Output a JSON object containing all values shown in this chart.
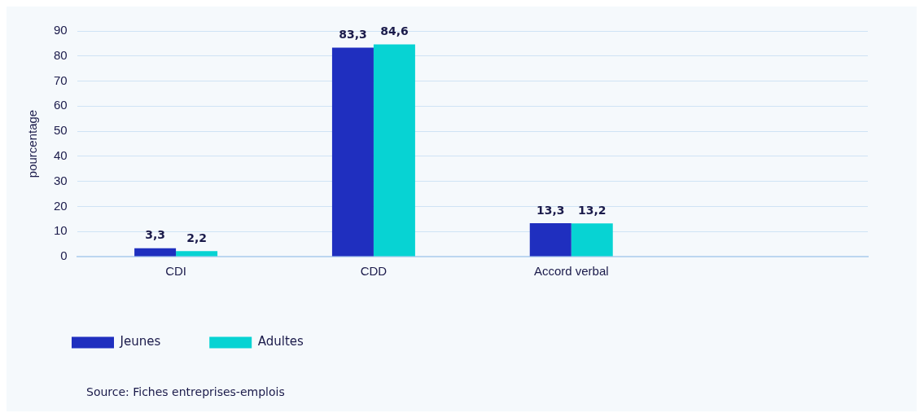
{
  "chart_data": {
    "type": "bar",
    "ylabel": "pourcentage",
    "categories": [
      "CDI",
      "CDD",
      "Accord verbal",
      null
    ],
    "series": [
      {
        "name": "Jeunes",
        "color": "#1f2fbf",
        "values": [
          3.3,
          83.3,
          13.3,
          null
        ],
        "value_labels": [
          "3,3",
          "83,3",
          "13,3",
          null
        ]
      },
      {
        "name": "Adultes",
        "color": "#07d3d3",
        "values": [
          2.2,
          84.6,
          13.2,
          null
        ],
        "value_labels": [
          "2,2",
          "84,6",
          "13,2",
          null
        ]
      }
    ],
    "ylim": [
      0,
      90
    ],
    "yticks": [
      0,
      10,
      20,
      30,
      40,
      50,
      60,
      70,
      80,
      90
    ],
    "grid": "y",
    "legend": "bottom left",
    "annotations": [
      "Source: Fiches entreprises-emplois"
    ]
  }
}
